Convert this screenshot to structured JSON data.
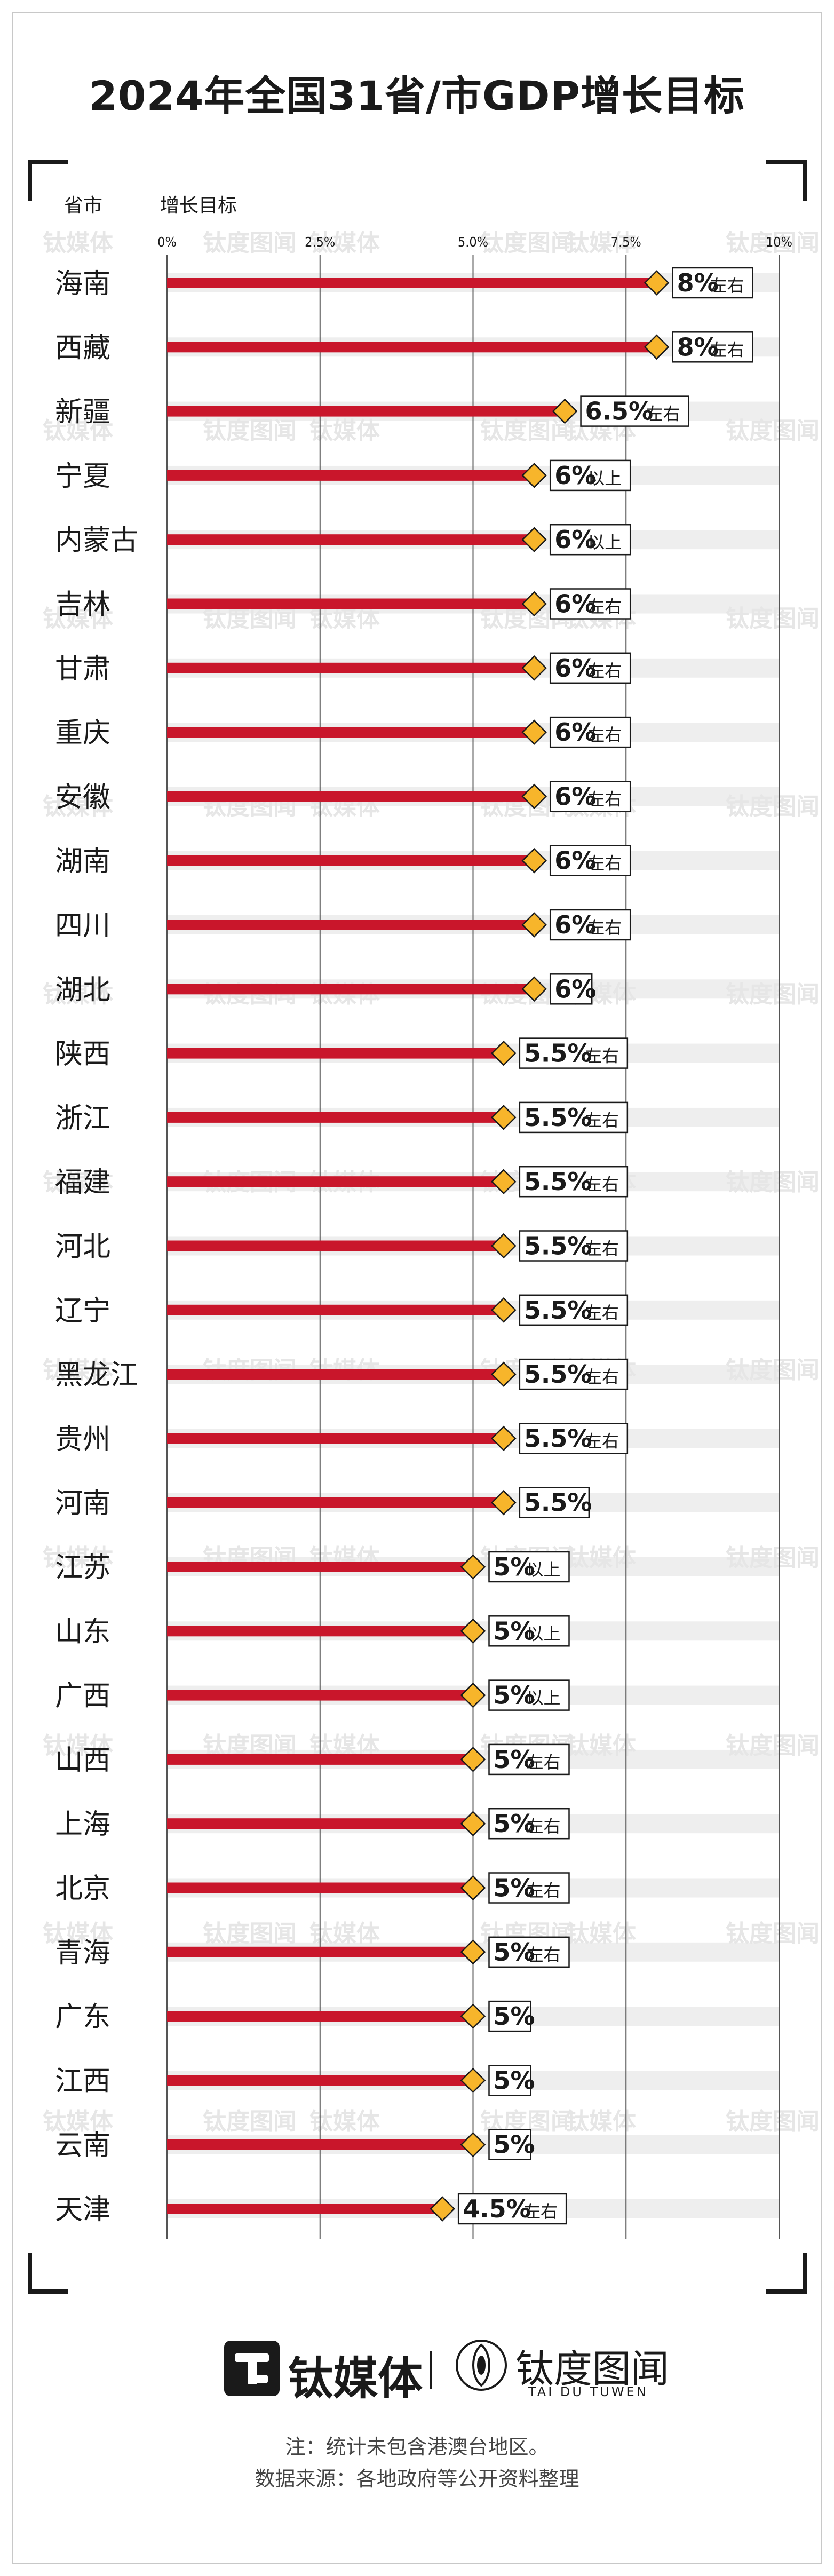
{
  "title": "2024年全国31省/市GDP增长目标",
  "header": {
    "province": "省市",
    "goal": "增长目标"
  },
  "watermarks": [
    "钛媒体",
    "钛度图闻"
  ],
  "brand": {
    "logo_text": "钛媒体",
    "partner_name": "钛度图闻",
    "partner_sub": "TAI DU TUWEN"
  },
  "notes": {
    "note": "注：统计未包含港澳台地区。",
    "source": "数据来源：各地政府等公开资料整理"
  },
  "colors": {
    "bar": "#c9162b",
    "marker": "#f7b52b",
    "stripe": "#eeeeee",
    "grid": "#555555"
  },
  "chart_data": {
    "type": "bar",
    "orientation": "horizontal",
    "xlim": [
      0,
      10
    ],
    "ticks": [
      "0%",
      "2.5%",
      "5.0%",
      "7.5%",
      "10%"
    ],
    "tick_values": [
      0,
      2.5,
      5,
      7.5,
      10
    ],
    "rows": [
      {
        "province": "海南",
        "value": 8,
        "label": "8%",
        "qualifier": "左右"
      },
      {
        "province": "西藏",
        "value": 8,
        "label": "8%",
        "qualifier": "左右"
      },
      {
        "province": "新疆",
        "value": 6.5,
        "label": "6.5%",
        "qualifier": "左右"
      },
      {
        "province": "宁夏",
        "value": 6,
        "label": "6%",
        "qualifier": "以上"
      },
      {
        "province": "内蒙古",
        "value": 6,
        "label": "6%",
        "qualifier": "以上"
      },
      {
        "province": "吉林",
        "value": 6,
        "label": "6%",
        "qualifier": "左右"
      },
      {
        "province": "甘肃",
        "value": 6,
        "label": "6%",
        "qualifier": "左右"
      },
      {
        "province": "重庆",
        "value": 6,
        "label": "6%",
        "qualifier": "左右"
      },
      {
        "province": "安徽",
        "value": 6,
        "label": "6%",
        "qualifier": "左右"
      },
      {
        "province": "湖南",
        "value": 6,
        "label": "6%",
        "qualifier": "左右"
      },
      {
        "province": "四川",
        "value": 6,
        "label": "6%",
        "qualifier": "左右"
      },
      {
        "province": "湖北",
        "value": 6,
        "label": "6%",
        "qualifier": ""
      },
      {
        "province": "陕西",
        "value": 5.5,
        "label": "5.5%",
        "qualifier": "左右"
      },
      {
        "province": "浙江",
        "value": 5.5,
        "label": "5.5%",
        "qualifier": "左右"
      },
      {
        "province": "福建",
        "value": 5.5,
        "label": "5.5%",
        "qualifier": "左右"
      },
      {
        "province": "河北",
        "value": 5.5,
        "label": "5.5%",
        "qualifier": "左右"
      },
      {
        "province": "辽宁",
        "value": 5.5,
        "label": "5.5%",
        "qualifier": "左右"
      },
      {
        "province": "黑龙江",
        "value": 5.5,
        "label": "5.5%",
        "qualifier": "左右"
      },
      {
        "province": "贵州",
        "value": 5.5,
        "label": "5.5%",
        "qualifier": "左右"
      },
      {
        "province": "河南",
        "value": 5.5,
        "label": "5.5%",
        "qualifier": ""
      },
      {
        "province": "江苏",
        "value": 5,
        "label": "5%",
        "qualifier": "以上"
      },
      {
        "province": "山东",
        "value": 5,
        "label": "5%",
        "qualifier": "以上"
      },
      {
        "province": "广西",
        "value": 5,
        "label": "5%",
        "qualifier": "以上"
      },
      {
        "province": "山西",
        "value": 5,
        "label": "5%",
        "qualifier": "左右"
      },
      {
        "province": "上海",
        "value": 5,
        "label": "5%",
        "qualifier": "左右"
      },
      {
        "province": "北京",
        "value": 5,
        "label": "5%",
        "qualifier": "左右"
      },
      {
        "province": "青海",
        "value": 5,
        "label": "5%",
        "qualifier": "左右"
      },
      {
        "province": "广东",
        "value": 5,
        "label": "5%",
        "qualifier": ""
      },
      {
        "province": "江西",
        "value": 5,
        "label": "5%",
        "qualifier": ""
      },
      {
        "province": "云南",
        "value": 5,
        "label": "5%",
        "qualifier": ""
      },
      {
        "province": "天津",
        "value": 4.5,
        "label": "4.5%",
        "qualifier": "左右"
      }
    ]
  }
}
